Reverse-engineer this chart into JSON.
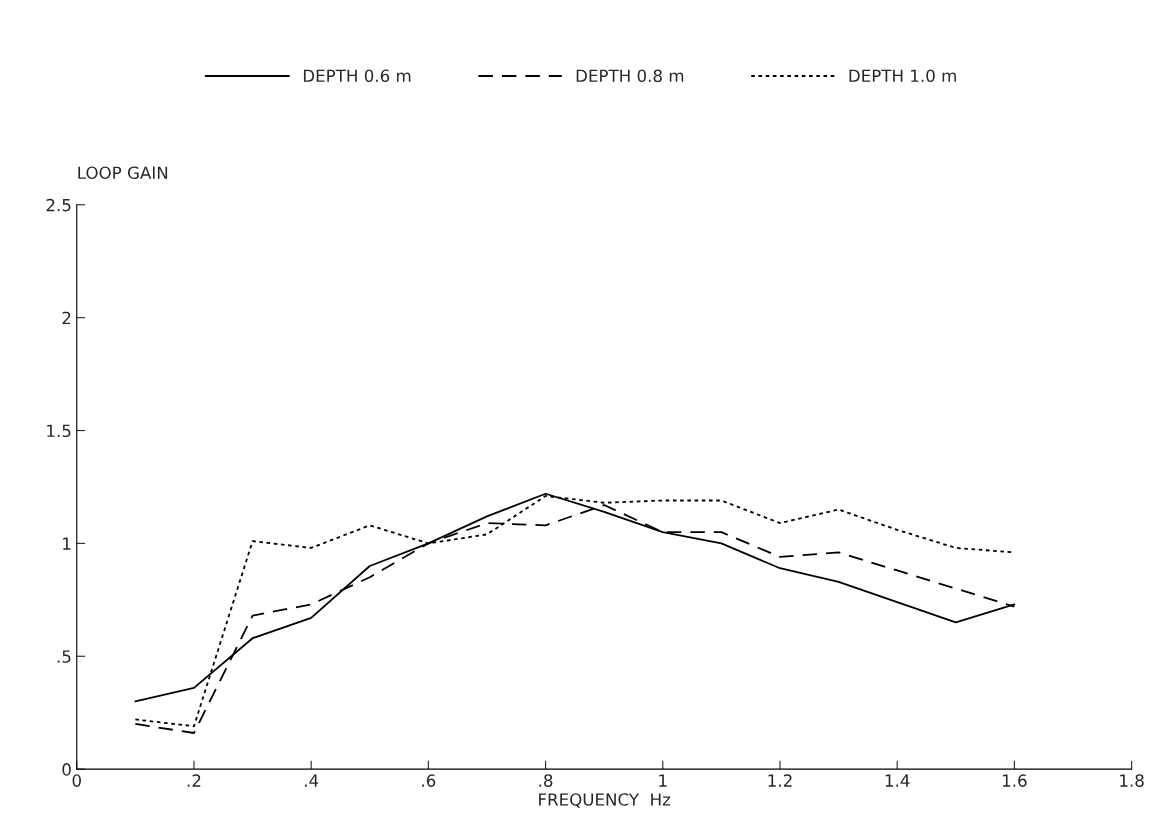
{
  "chart_data": {
    "type": "line",
    "xlabel": "FREQUENCY  Hz",
    "ylabel": "LOOP GAIN",
    "x": [
      0.1,
      0.2,
      0.3,
      0.4,
      0.5,
      0.6,
      0.7,
      0.8,
      0.9,
      1.0,
      1.1,
      1.2,
      1.3,
      1.4,
      1.5,
      1.6
    ],
    "series": [
      {
        "name": "DEPTH 0.6 m",
        "color": "#000000",
        "line_style": "solid",
        "values": [
          0.3,
          0.36,
          0.58,
          0.67,
          0.9,
          1.0,
          1.12,
          1.22,
          1.14,
          1.05,
          1.0,
          0.89,
          0.83,
          0.74,
          0.65,
          0.73
        ]
      },
      {
        "name": "DEPTH 0.8 m",
        "color": "#000000",
        "line_style": "dashed",
        "values": [
          0.2,
          0.16,
          0.68,
          0.73,
          0.85,
          1.0,
          1.09,
          1.08,
          1.17,
          1.05,
          1.05,
          0.94,
          0.96,
          0.88,
          0.8,
          0.72
        ]
      },
      {
        "name": "DEPTH 1.0 m",
        "color": "#000000",
        "line_style": "dotted",
        "values": [
          0.22,
          0.19,
          1.01,
          0.98,
          1.08,
          1.0,
          1.04,
          1.21,
          1.18,
          1.19,
          1.19,
          1.09,
          1.15,
          1.06,
          0.98,
          0.96
        ]
      }
    ],
    "xlim": [
      0,
      1.8
    ],
    "xticks": [
      0,
      {
        "value": 0.2,
        "label": ".2"
      },
      {
        "value": 0.4,
        "label": ".4"
      },
      {
        "value": 0.6,
        "label": ".6"
      },
      {
        "value": 0.8,
        "label": ".8"
      },
      1,
      1.2,
      1.4,
      1.6,
      1.8
    ],
    "ylim": [
      0,
      2.5
    ],
    "yticks": [
      0,
      {
        "value": 0.5,
        "label": ".5"
      },
      1,
      1.5,
      2,
      2.5
    ],
    "grid": false,
    "legend": "top",
    "marker": "none"
  }
}
